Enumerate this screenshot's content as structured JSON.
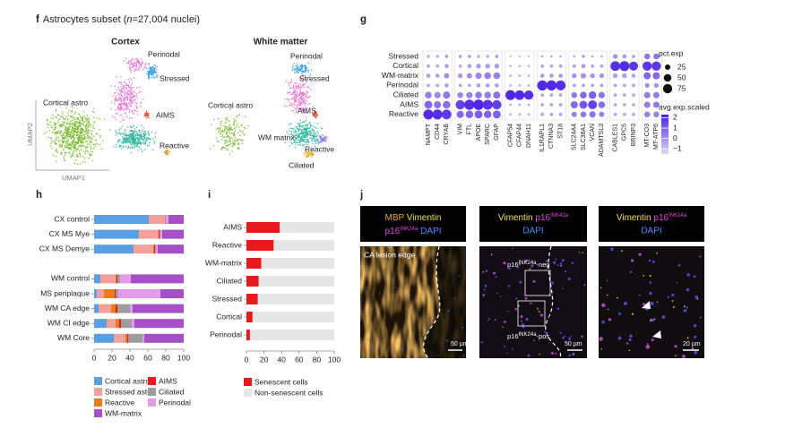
{
  "panel_f": {
    "label": "f",
    "title": [
      "Astrocytes subset (",
      "n",
      "=27,004 nuclei)"
    ],
    "cortex": {
      "title": "Cortex",
      "clusters": [
        "Perinodal",
        "Stressed",
        "Cortical astro",
        "AIMS",
        "Reactive"
      ],
      "xlabel": "UMAP1",
      "ylabel": "UMAP2"
    },
    "white_matter": {
      "title": "White matter",
      "clusters": [
        "Perinodal",
        "Stressed",
        "Cortical astro",
        "AIMS",
        "WM matrix",
        "Reactive",
        "Ciliated"
      ]
    }
  },
  "chart_data": [
    {
      "type": "dot",
      "label": "g",
      "categories": [
        "NAMPT",
        "CD44",
        "CRYAB",
        "VIM",
        "FTL",
        "APOE",
        "SPARC",
        "GFAP",
        "CFAP54",
        "CFAP44",
        "DNAH11",
        "IL1RAPL1",
        "CTNNA3",
        "ST18",
        "SLC24A4",
        "SLC38A1",
        "VCAN",
        "ADAMTSL3",
        "CABLES1",
        "GPC5",
        "BRINP3",
        "MT-CO3",
        "MT-ATP6"
      ],
      "series": [
        {
          "name": "Stressed",
          "values": [
            -0.5,
            -0.5,
            -0.3,
            -0.4,
            -0.3,
            -0.5,
            -0.5,
            -0.3,
            -0.5,
            -0.5,
            -0.5,
            -0.5,
            -0.5,
            -0.5,
            -0.4,
            -0.3,
            -0.5,
            -0.5,
            0,
            -0.2,
            -0.3,
            0.5,
            0.5
          ],
          "pct": [
            8,
            8,
            10,
            10,
            10,
            8,
            8,
            10,
            3,
            3,
            3,
            5,
            5,
            5,
            5,
            8,
            5,
            5,
            20,
            15,
            10,
            30,
            30
          ]
        },
        {
          "name": "Cortical",
          "values": [
            -0.5,
            -0.5,
            -0.3,
            -0.5,
            -0.3,
            -0.2,
            -0.2,
            -0.2,
            -0.6,
            -0.6,
            -0.6,
            -0.4,
            -0.4,
            -0.4,
            -0.3,
            -0.2,
            -0.4,
            -0.4,
            2,
            2,
            1.8,
            1.8,
            1.8
          ],
          "pct": [
            10,
            10,
            15,
            10,
            15,
            20,
            20,
            20,
            5,
            5,
            5,
            10,
            10,
            10,
            10,
            15,
            10,
            10,
            80,
            85,
            70,
            75,
            75
          ]
        },
        {
          "name": "WM-matrix",
          "values": [
            -0.3,
            -0.3,
            0,
            -0.2,
            0,
            0.2,
            0.3,
            0.3,
            -0.5,
            -0.5,
            -0.5,
            -0.2,
            -0.2,
            -0.2,
            0,
            0,
            -0.1,
            -0.1,
            -0.3,
            -0.3,
            -0.4,
            0.8,
            0.8
          ],
          "pct": [
            15,
            15,
            25,
            20,
            25,
            35,
            40,
            40,
            5,
            5,
            5,
            15,
            15,
            15,
            20,
            25,
            20,
            20,
            20,
            20,
            15,
            45,
            45
          ]
        },
        {
          "name": "Perinodal",
          "values": [
            -0.5,
            -0.5,
            -0.3,
            -0.5,
            -0.5,
            -0.3,
            -0.3,
            -0.3,
            -0.6,
            -0.6,
            -0.6,
            2.1,
            2.1,
            2,
            -0.3,
            -0.3,
            -0.3,
            -0.3,
            -0.4,
            -0.4,
            -0.4,
            0,
            0
          ],
          "pct": [
            10,
            10,
            15,
            10,
            10,
            15,
            15,
            15,
            5,
            5,
            5,
            90,
            90,
            85,
            10,
            10,
            10,
            10,
            10,
            10,
            10,
            20,
            20
          ]
        },
        {
          "name": "Ciliated",
          "values": [
            0.3,
            0.2,
            0.5,
            0.2,
            0.3,
            0.5,
            0.4,
            0.6,
            2.2,
            2.1,
            2,
            -0.4,
            -0.4,
            -0.4,
            0.5,
            0.8,
            1,
            0.6,
            -0.5,
            -0.5,
            -0.5,
            0.4,
            0.4
          ],
          "pct": [
            40,
            35,
            45,
            30,
            35,
            40,
            40,
            45,
            85,
            80,
            75,
            10,
            10,
            10,
            30,
            40,
            50,
            35,
            10,
            10,
            10,
            35,
            35
          ]
        },
        {
          "name": "AIMS",
          "values": [
            0.8,
            0.6,
            0.7,
            1.6,
            2,
            2.2,
            1.9,
            1.6,
            -0.5,
            -0.5,
            -0.5,
            -0.4,
            -0.4,
            -0.4,
            0.8,
            1.2,
            1.6,
            0.7,
            -0.5,
            -0.5,
            -0.5,
            0.4,
            0.4
          ],
          "pct": [
            55,
            45,
            50,
            75,
            90,
            95,
            85,
            75,
            5,
            5,
            5,
            10,
            10,
            10,
            45,
            55,
            70,
            40,
            10,
            10,
            10,
            35,
            35
          ]
        },
        {
          "name": "Reactive",
          "values": [
            2.1,
            2,
            1.8,
            0.8,
            0.9,
            1,
            0.9,
            1,
            -0.5,
            -0.5,
            -0.5,
            -0.4,
            -0.4,
            -0.4,
            0.3,
            0.5,
            0.6,
            0.3,
            -0.5,
            -0.5,
            -0.5,
            0.3,
            0.3
          ],
          "pct": [
            85,
            85,
            80,
            45,
            50,
            55,
            50,
            55,
            5,
            5,
            5,
            10,
            10,
            10,
            25,
            30,
            35,
            25,
            10,
            10,
            10,
            30,
            30
          ]
        }
      ],
      "size_legend_title": "pct.exp",
      "size_ticks": [
        25,
        50,
        75
      ],
      "color_legend_title": "avg.exp.scaled",
      "clim": [
        -1.5,
        2.3
      ],
      "cticks": [
        2,
        1,
        0,
        {
          "value": -1,
          "label": "−1"
        }
      ],
      "colors": [
        "#ded9f0",
        "#4a1fe6"
      ]
    },
    {
      "type": "stacked_barh",
      "label": "h",
      "categories": [
        "CX control",
        "CX MS Mye",
        "CX MS Demye",
        null,
        "WM control",
        "MS periplaque",
        "WM CA edge",
        "WM CI edge",
        "WM Core"
      ],
      "series": [
        {
          "name": "Cortical astro",
          "color": "#5b9fe3",
          "values": [
            61,
            50,
            44,
            null,
            7,
            3,
            5,
            14,
            22
          ]
        },
        {
          "name": "Stressed astro",
          "color": "#f3a09a",
          "values": [
            18,
            22,
            22,
            null,
            17,
            8,
            14,
            10,
            13
          ]
        },
        {
          "name": "Reactive",
          "color": "#ea7a1c",
          "values": [
            0,
            0,
            1,
            null,
            1,
            12,
            5,
            4,
            2
          ]
        },
        {
          "name": "AIMS",
          "color": "#e51b1e",
          "values": [
            0,
            1,
            1,
            null,
            1,
            1,
            2,
            2,
            1
          ]
        },
        {
          "name": "Ciliated",
          "color": "#9d9d9d",
          "values": [
            1,
            1,
            1,
            null,
            3,
            3,
            14,
            12,
            16
          ]
        },
        {
          "name": "Perinodal",
          "color": "#e39bea",
          "values": [
            3,
            2,
            2,
            null,
            12,
            47,
            3,
            3,
            2
          ]
        },
        {
          "name": "WM-matrix",
          "color": "#a650c8",
          "values": [
            17,
            24,
            29,
            null,
            59,
            26,
            57,
            55,
            44
          ]
        }
      ],
      "xlim": [
        0,
        100
      ],
      "xticks": [
        0,
        20,
        40,
        60,
        80,
        100
      ]
    },
    {
      "type": "stacked_barh",
      "label": "i",
      "categories": [
        "AIMS",
        "Reactive",
        "WM-matrix",
        "Ciliated",
        "Stressed",
        "Cortical",
        "Perinodal"
      ],
      "series": [
        {
          "name": "Senescent cells",
          "color": "#e8191d",
          "values": [
            38,
            31,
            17,
            14,
            13,
            7,
            4
          ]
        },
        {
          "name": "Non-senescent cells",
          "color": "#e6e6e6",
          "values": [
            62,
            69,
            83,
            86,
            87,
            93,
            96
          ]
        }
      ],
      "xlim": [
        0,
        100
      ],
      "xticks": [
        0,
        20,
        40,
        60,
        80,
        100
      ]
    }
  ],
  "panel_j": {
    "label": "j",
    "headers": [
      [
        "MBP",
        "Vimentin",
        "p16",
        "INK24a",
        "DAPI"
      ],
      [
        "Vimentin",
        "p16",
        "INK42a",
        "DAPI"
      ],
      [
        "Vimentin",
        "p16",
        "INK24a",
        "DAPI"
      ]
    ],
    "images": [
      {
        "caption": "CA lesion edge",
        "scale_bar": "50 µm"
      },
      {
        "neg": [
          "p16",
          "INK24a",
          "-neg"
        ],
        "pos": [
          "p16",
          "INK24a",
          "-pos"
        ],
        "scale_bar": "50 µm"
      },
      {
        "scale_bar": "20 µm"
      }
    ]
  }
}
